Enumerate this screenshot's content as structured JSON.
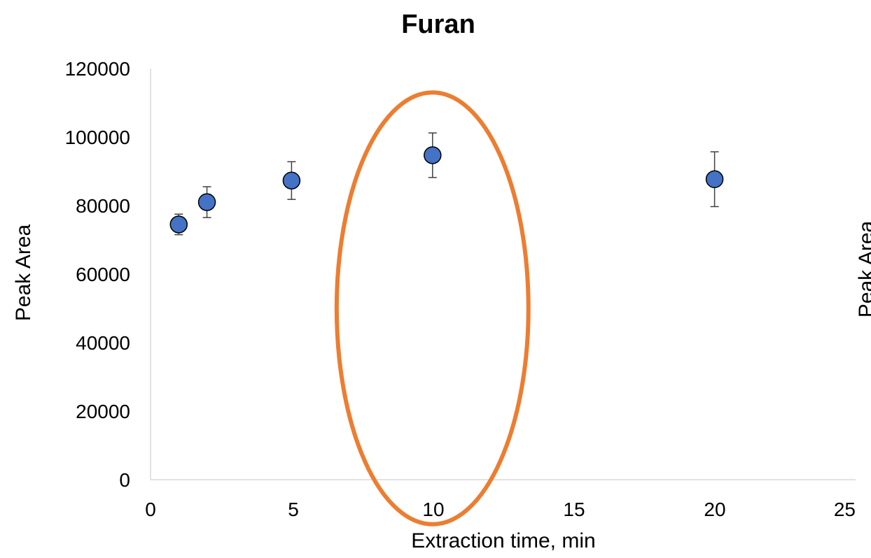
{
  "chart_data": {
    "type": "scatter",
    "title": "Furan",
    "xlabel": "Extraction time, min",
    "ylabel": "Peak Area",
    "xlim": [
      0,
      25
    ],
    "ylim": [
      0,
      120000
    ],
    "x_ticks": [
      "0",
      "5",
      "10",
      "15",
      "20",
      "25"
    ],
    "y_ticks": [
      "0",
      "20000",
      "40000",
      "60000",
      "80000",
      "100000",
      "120000"
    ],
    "grid": false,
    "series": [
      {
        "x": [
          1,
          2,
          5,
          10,
          20
        ],
        "y": [
          74500,
          81000,
          87300,
          94700,
          87700
        ],
        "error": [
          3000,
          4500,
          5500,
          6500,
          8000
        ],
        "color": "#4472C4"
      }
    ],
    "annotations": [
      {
        "type": "ellipse",
        "center_x": 10,
        "center_y": 50000,
        "half_width_x": 3.4,
        "half_height_y": 63000,
        "color": "#ED7D31"
      }
    ],
    "clipped_label_right": "Peak Area"
  }
}
